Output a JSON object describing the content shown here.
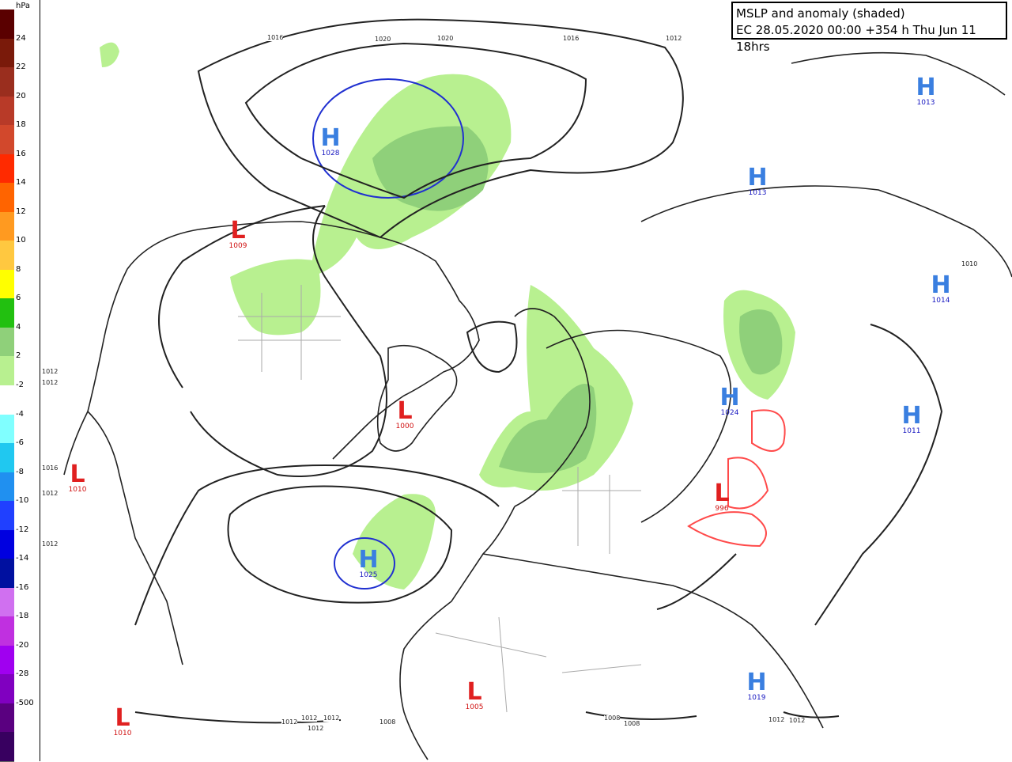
{
  "title": {
    "line1": "MSLP and anomaly (shaded)",
    "line2": "EC 28.05.2020 00:00 +354 h Thu Jun 11 18hrs"
  },
  "legend": {
    "unit": "hPa",
    "labels": [
      "24",
      "22",
      "20",
      "18",
      "16",
      "14",
      "12",
      "10",
      "8",
      "6",
      "4",
      "2",
      "-2",
      "-4",
      "-6",
      "-8",
      "-10",
      "-12",
      "-14",
      "-16",
      "-18",
      "-20",
      "-28",
      "-500"
    ],
    "colors": [
      "#5a0000",
      "#7a1a0a",
      "#9a2e1e",
      "#b83a28",
      "#d2482c",
      "#ff2a00",
      "#ff6400",
      "#ff9a20",
      "#ffc840",
      "#ffff00",
      "#22c010",
      "#8fd07a",
      "#b8f090",
      "#ffffff",
      "#80ffff",
      "#20c8f0",
      "#2090f0",
      "#2040ff",
      "#0000e0",
      "#0010a0",
      "#d070f0",
      "#c030e0",
      "#a000f0",
      "#8000c0",
      "#5a0080",
      "#380060"
    ]
  },
  "pressure_centers": [
    {
      "type": "H",
      "value": "1028"
    },
    {
      "type": "L",
      "value": "1009"
    },
    {
      "type": "L",
      "value": "1000"
    },
    {
      "type": "L",
      "value": "1010"
    },
    {
      "type": "H",
      "value": "1025"
    },
    {
      "type": "L",
      "value": "1010"
    },
    {
      "type": "L",
      "value": "1005"
    },
    {
      "type": "H",
      "value": "1013"
    },
    {
      "type": "H",
      "value": "1013"
    },
    {
      "type": "H",
      "value": "1014"
    },
    {
      "type": "H",
      "value": "1024"
    },
    {
      "type": "H",
      "value": "1011"
    },
    {
      "type": "L",
      "value": "996"
    },
    {
      "type": "H",
      "value": "1019"
    }
  ],
  "isobar_labels": [
    "1016",
    "1020",
    "1020",
    "1016",
    "1012",
    "1012",
    "1012",
    "1016",
    "1012",
    "1010",
    "1012",
    "1012",
    "1012",
    "1012",
    "1008",
    "1008",
    "1008",
    "1012",
    "1012",
    "1012"
  ],
  "colors": {
    "high": "#3a7fe0",
    "low": "#e02020",
    "anomaly_light": "#b8f090",
    "anomaly_mid": "#8fd07a",
    "isobar": "#222222"
  }
}
